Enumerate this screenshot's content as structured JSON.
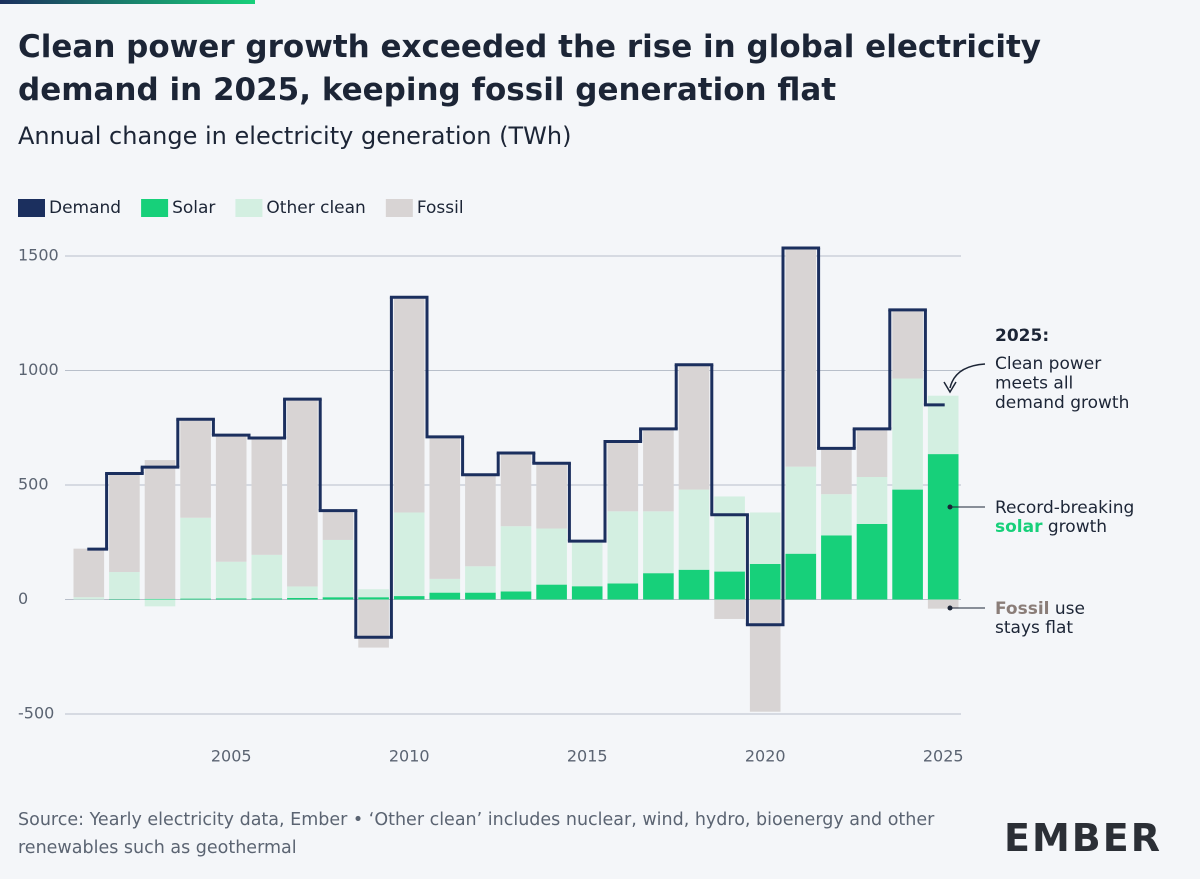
{
  "chart_data": {
    "type": "bar",
    "title": "Clean power growth exceeded the rise in global electricity demand in 2025, keeping fossil generation flat",
    "subtitle": "Annual change in electricity generation (TWh)",
    "x": [
      2001,
      2002,
      2003,
      2004,
      2005,
      2006,
      2007,
      2008,
      2009,
      2010,
      2011,
      2012,
      2013,
      2014,
      2015,
      2016,
      2017,
      2018,
      2019,
      2020,
      2021,
      2022,
      2023,
      2024,
      2025
    ],
    "series": [
      {
        "name": "Demand",
        "color": "#1b2f5e",
        "values": [
          220,
          550,
          578,
          787,
          718,
          705,
          875,
          388,
          -165,
          1320,
          710,
          545,
          640,
          595,
          255,
          690,
          745,
          1025,
          370,
          -110,
          1535,
          660,
          745,
          1265,
          850
        ]
      },
      {
        "name": "Solar",
        "color": "#17d07a",
        "values": [
          0,
          2,
          3,
          4,
          5,
          5,
          7,
          10,
          10,
          15,
          30,
          30,
          35,
          65,
          58,
          70,
          115,
          130,
          122,
          155,
          200,
          280,
          330,
          480,
          635
        ]
      },
      {
        "name": "Other clean",
        "color": "#d3efe1",
        "values": [
          10,
          118,
          -30,
          353,
          160,
          190,
          50,
          250,
          35,
          365,
          60,
          115,
          285,
          245,
          190,
          315,
          270,
          350,
          328,
          225,
          380,
          180,
          205,
          485,
          255
        ]
      },
      {
        "name": "Fossil",
        "color": "#d8d4d4",
        "values": [
          212,
          430,
          606,
          430,
          555,
          511,
          818,
          128,
          -210,
          940,
          620,
          400,
          320,
          285,
          0,
          305,
          360,
          545,
          -85,
          -490,
          955,
          200,
          210,
          300,
          -40
        ]
      }
    ],
    "xlim": [
      2000.5,
      2025.5
    ],
    "xticks": [
      2005,
      2010,
      2015,
      2020,
      2025
    ],
    "ylim": [
      -500,
      1500
    ],
    "yticks": [
      -500,
      0,
      500,
      1000,
      1500
    ],
    "grid": true,
    "annotations": {
      "clean": {
        "heading": "2025:",
        "lines": [
          "Clean power",
          "meets all",
          "demand growth"
        ]
      },
      "solar": {
        "before": "Record-breaking",
        "highlight": "solar",
        "after": " growth"
      },
      "fossil": {
        "highlight": "Fossil",
        "after": " use",
        "line2": "stays flat"
      }
    },
    "source": "Source: Yearly electricity data, Ember • ‘Other clean’ includes nuclear, wind, hydro, bioenergy and other renewables such as geothermal",
    "logo": "EMBER"
  }
}
